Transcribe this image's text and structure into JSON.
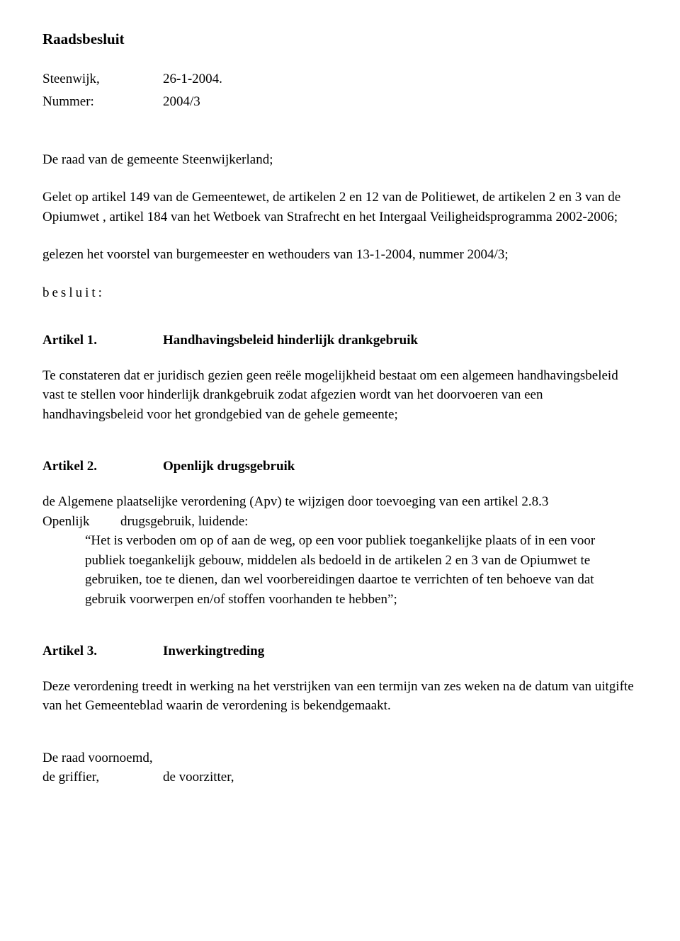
{
  "title": "Raadsbesluit",
  "meta": {
    "place_label": "Steenwijk,",
    "date": "26-1-2004.",
    "number_label": "Nummer:",
    "number_value": "2004/3"
  },
  "intro": "De raad van de gemeente Steenwijkerland;",
  "considerans": "Gelet op artikel 149 van de Gemeentewet, de artikelen 2 en 12 van de Politiewet, de artikelen 2 en 3 van de Opiumwet , artikel 184 van het Wetboek van Strafrecht en het Intergaal Veiligheidsprogramma 2002-2006;",
  "voorstel": "gelezen het voorstel van burgemeester en wethouders van 13-1-2004, nummer 2004/3;",
  "besluit": "besluit:",
  "article1": {
    "num": "Artikel 1.",
    "heading": "Handhavingsbeleid hinderlijk drankgebruik",
    "body": "Te constateren dat er juridisch gezien geen reële mogelijkheid bestaat om een algemeen handhavingsbeleid vast te stellen voor hinderlijk drankgebruik zodat afgezien wordt van het doorvoeren van een handhavingsbeleid voor het grondgebied van de gehele gemeente;"
  },
  "article2": {
    "num": "Artikel 2.",
    "heading": "Openlijk drugsgebruik",
    "line1": "de Algemene plaatselijke verordening  (Apv) te wijzigen door toevoeging van een artikel 2.8.3",
    "line2_left": "Openlijk",
    "line2_right": "drugsgebruik, luidende:",
    "quote": "“Het is verboden om op of aan de weg, op een voor publiek toegankelijke plaats of in een voor publiek toegankelijk gebouw, middelen als bedoeld in de artikelen 2 en 3 van de Opiumwet te gebruiken, toe te dienen, dan wel voorbereidingen daartoe te verrichten of ten behoeve van dat gebruik voorwerpen en/of stoffen voorhanden te hebben”;"
  },
  "article3": {
    "num": "Artikel 3.",
    "heading": "Inwerkingtreding",
    "body": "Deze verordening treedt in werking na het verstrijken van een termijn van zes weken na de datum van uitgifte van het Gemeenteblad waarin de verordening is bekendgemaakt."
  },
  "closing": {
    "line1": "De raad voornoemd,",
    "sig_left": "de griffier,",
    "sig_right": "de voorzitter,"
  }
}
